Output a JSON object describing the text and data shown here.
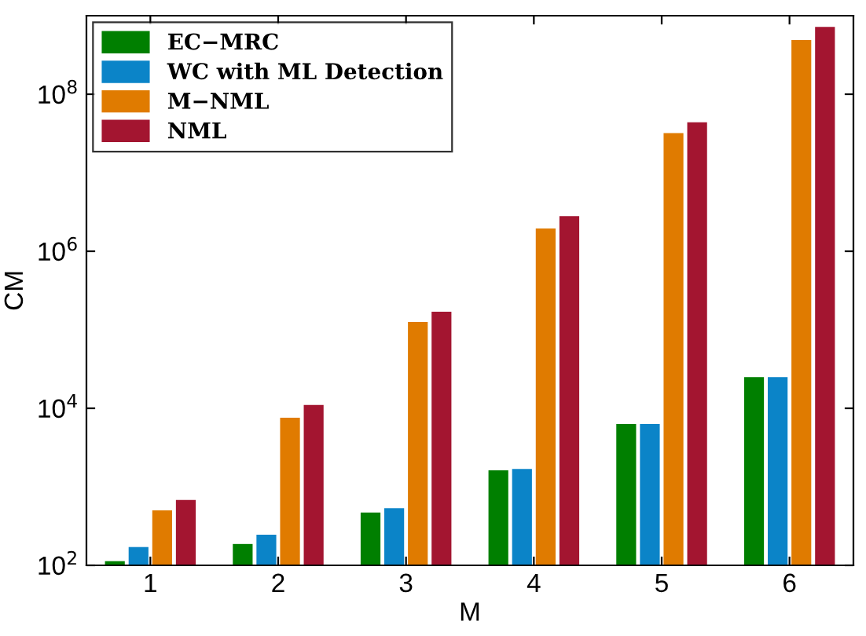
{
  "chart_data": {
    "type": "bar",
    "xlabel": "M",
    "ylabel": "CM",
    "categories": [
      "1",
      "2",
      "3",
      "4",
      "5",
      "6"
    ],
    "log": "y",
    "ylim": [
      100,
      1000000000
    ],
    "yticks": [
      {
        "value": 100,
        "label": "10$^{2}$"
      },
      {
        "value": 10000,
        "label": "10$^{4}$"
      },
      {
        "value": 1000000,
        "label": "10$^{6}$"
      },
      {
        "value": 100000000,
        "label": "10$^{8}$"
      }
    ],
    "legend": "top left",
    "grid": false,
    "series": [
      {
        "name": "EC−MRC",
        "color": "#007f00",
        "values": [
          113,
          187,
          470,
          1620,
          6300,
          25000
        ]
      },
      {
        "name": "WC with ML Detection",
        "color": "#0b84c8",
        "values": [
          171,
          245,
          535,
          1690,
          6300,
          25000
        ]
      },
      {
        "name": "M−NML",
        "color": "#e07b00",
        "values": [
          500,
          7600,
          126000,
          1950000,
          32000000,
          490000000
        ]
      },
      {
        "name": "NML",
        "color": "#a31530",
        "values": [
          680,
          11000,
          170000,
          2800000,
          44000000,
          720000000
        ]
      }
    ]
  }
}
